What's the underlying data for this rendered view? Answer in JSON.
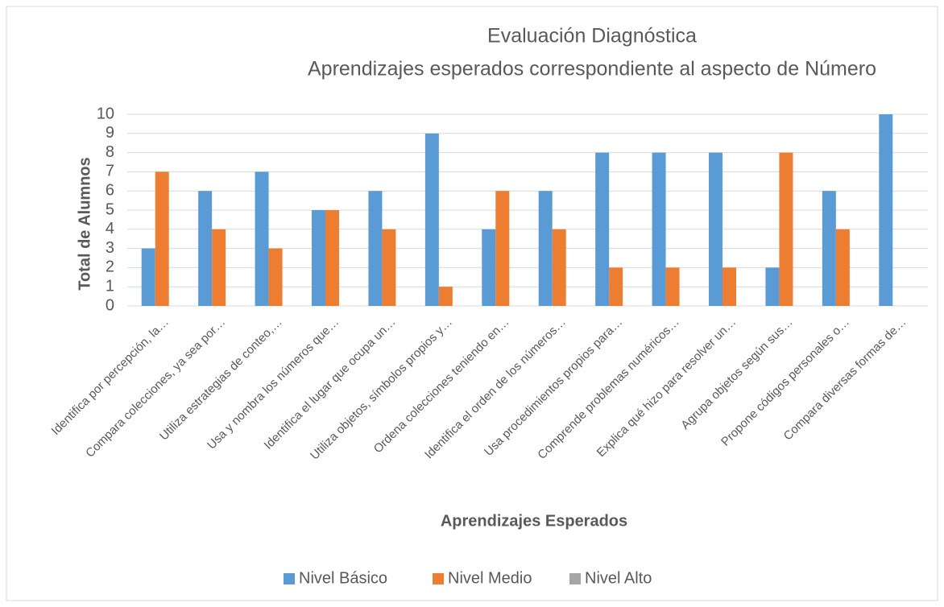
{
  "chart_data": {
    "type": "bar",
    "title": "Evaluación Diagnóstica",
    "subtitle": "Aprendizajes esperados correspondiente al aspecto de Número",
    "x_label": "Aprendizajes Esperados",
    "y_label": "Total de Alumnos",
    "categories": [
      "Identifica por percepción, la…",
      "Compara colecciones, ya sea por…",
      "Utiliza estrategias de conteo,…",
      "Usa y nombra los números que…",
      "Identifica el lugar que ocupa un…",
      "Utiliza objetos, símbolos propios y…",
      "Ordena colecciones teniendo en…",
      "Identifica el orden de los números…",
      "Usa procedimientos propios para…",
      "Comprende problemas numéricos…",
      "Explica qué hizo para resolver un…",
      "Agrupa objetos según sus…",
      "Propone códigos personales o…",
      "Compara diversas formas de…"
    ],
    "series": [
      {
        "name": "Nivel Básico",
        "color": "#5b9bd5",
        "values": [
          3,
          6,
          7,
          5,
          6,
          9,
          4,
          6,
          8,
          8,
          8,
          2,
          6,
          10
        ]
      },
      {
        "name": "Nivel Medio",
        "color": "#ed7d31",
        "values": [
          7,
          4,
          3,
          5,
          4,
          1,
          6,
          4,
          2,
          2,
          2,
          8,
          4,
          0
        ]
      },
      {
        "name": "Nivel Alto",
        "color": "#a5a5a5",
        "values": [
          0,
          0,
          0,
          0,
          0,
          0,
          0,
          0,
          0,
          0,
          0,
          0,
          0,
          0
        ]
      }
    ],
    "ylim": [
      0,
      10
    ],
    "yticks": [
      0,
      1,
      2,
      3,
      4,
      5,
      6,
      7,
      8,
      9,
      10
    ],
    "grid": true,
    "legend": "bottom"
  }
}
